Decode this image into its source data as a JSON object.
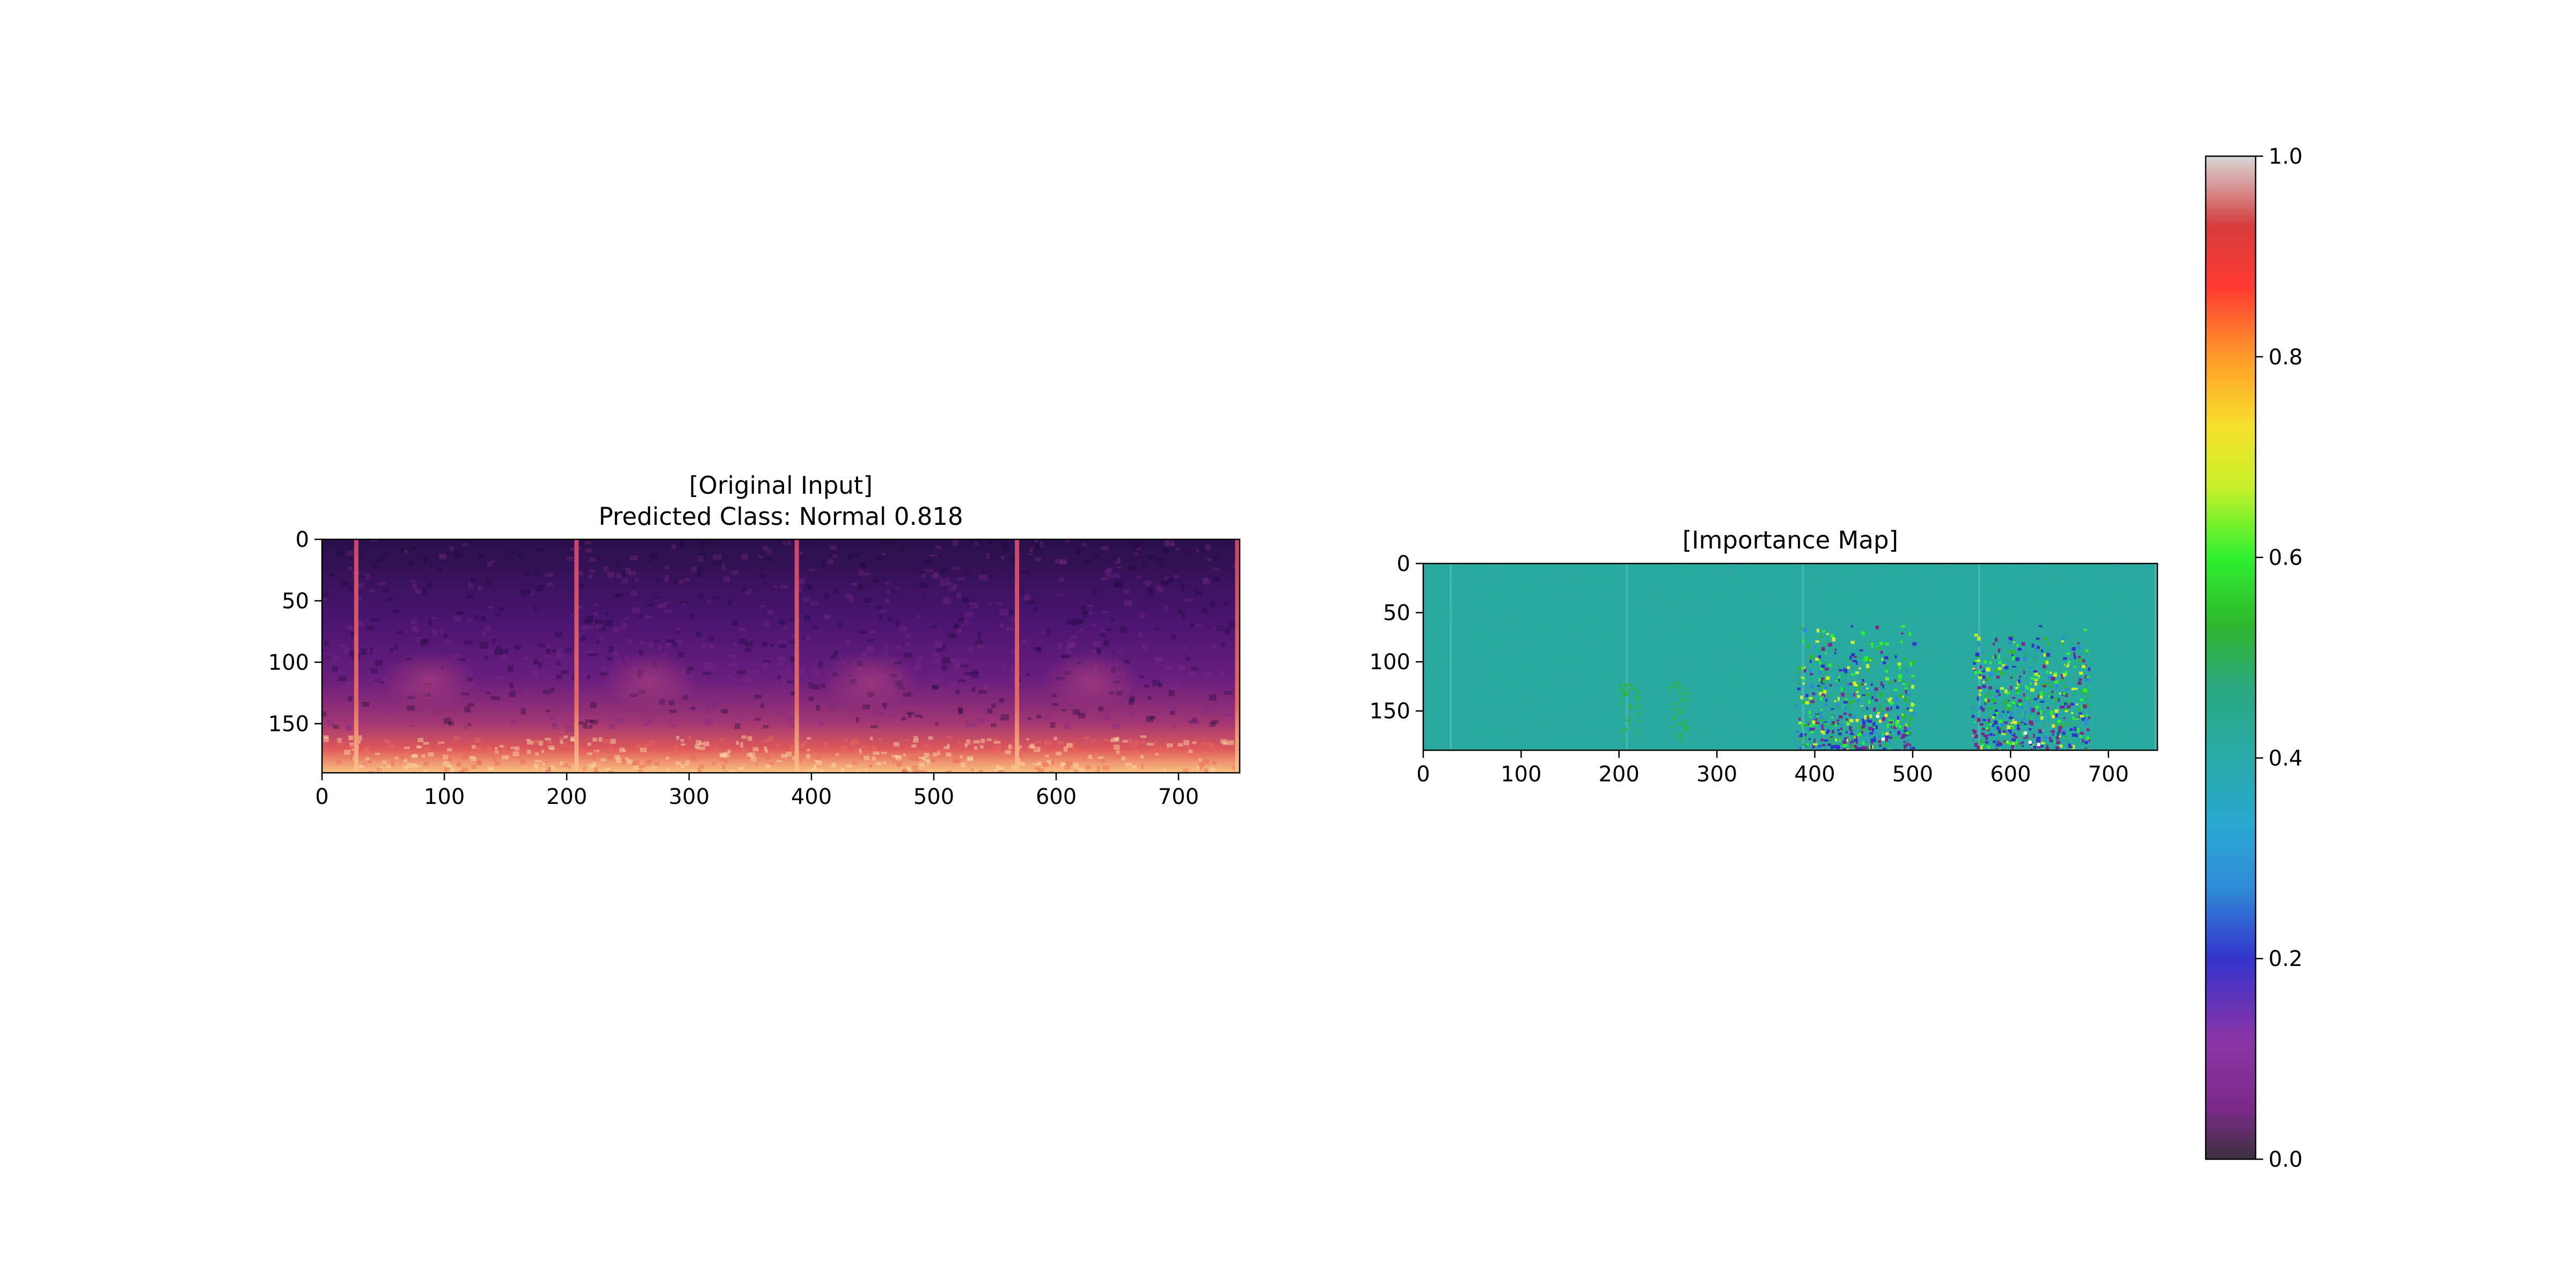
{
  "chart_data": [
    {
      "type": "heatmap",
      "title_line1": "[Original Input]",
      "title_line2": "Predicted Class: Normal 0.818",
      "colormap": "magma",
      "xlim": [
        0,
        750
      ],
      "ylim": [
        190,
        0
      ],
      "x_ticks": [
        0,
        100,
        200,
        300,
        400,
        500,
        600,
        700
      ],
      "y_ticks": [
        0,
        50,
        100,
        150
      ],
      "x_tick_labels": [
        "0",
        "100",
        "200",
        "300",
        "400",
        "500",
        "600",
        "700"
      ],
      "y_tick_labels": [
        "0",
        "50",
        "100",
        "150"
      ],
      "vertical_bands_x": [
        28,
        208,
        388,
        568,
        748
      ]
    },
    {
      "type": "heatmap",
      "title": "[Importance Map]",
      "colormap": "nipy_spectral",
      "xlim": [
        0,
        750
      ],
      "ylim": [
        190,
        0
      ],
      "x_ticks": [
        0,
        100,
        200,
        300,
        400,
        500,
        600,
        700
      ],
      "y_ticks": [
        0,
        50,
        100,
        150
      ],
      "x_tick_labels": [
        "0",
        "100",
        "200",
        "300",
        "400",
        "500",
        "600",
        "700"
      ],
      "y_tick_labels": [
        "0",
        "50",
        "100",
        "150"
      ],
      "background_value": 0.4,
      "hotspot_regions_x": [
        [
          380,
          500
        ],
        [
          560,
          680
        ]
      ]
    }
  ],
  "colorbar": {
    "range": [
      0.0,
      1.0
    ],
    "ticks": [
      0.0,
      0.2,
      0.4,
      0.6,
      0.8,
      1.0
    ],
    "tick_labels": [
      "0.0",
      "0.2",
      "0.4",
      "0.6",
      "0.8",
      "1.0"
    ],
    "colormap": "nipy_spectral"
  }
}
